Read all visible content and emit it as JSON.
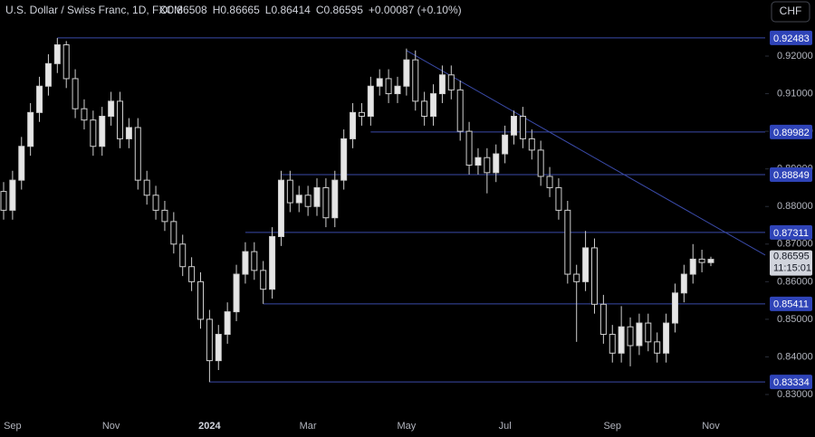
{
  "chart_data": {
    "type": "candlestick",
    "title": "U.S. Dollar / Swiss Franc, 1D, FXCM",
    "ohlc_header": [
      "O0.86508",
      "H0.86665",
      "L0.86414",
      "C0.86595",
      "+0.00087 (+0.10%)"
    ],
    "currency_button": "CHF",
    "categories": [
      null,
      "Sep",
      null,
      null,
      null,
      null,
      null,
      null,
      null,
      null,
      null,
      null,
      "Nov",
      null,
      null,
      null,
      null,
      null,
      null,
      null,
      null,
      null,
      null,
      "2024",
      null,
      null,
      null,
      null,
      null,
      null,
      null,
      null,
      null,
      null,
      "Mar",
      null,
      null,
      null,
      null,
      null,
      null,
      null,
      null,
      null,
      null,
      "May",
      null,
      null,
      null,
      null,
      null,
      null,
      null,
      null,
      null,
      null,
      "Jul",
      null,
      null,
      null,
      null,
      null,
      null,
      null,
      null,
      null,
      null,
      null,
      "Sep",
      null,
      null,
      null,
      null,
      null,
      null,
      null,
      null,
      null,
      null,
      "Nov"
    ],
    "open": [
      0.884,
      0.879,
      0.887,
      0.896,
      0.905,
      0.912,
      0.918,
      0.923,
      0.914,
      0.906,
      0.903,
      0.896,
      0.904,
      0.908,
      0.898,
      0.901,
      0.887,
      0.883,
      0.879,
      0.876,
      0.87,
      0.864,
      0.86,
      0.85,
      0.839,
      0.846,
      0.852,
      0.862,
      0.868,
      0.863,
      0.858,
      0.872,
      0.887,
      0.881,
      0.883,
      0.88,
      0.885,
      0.877,
      0.887,
      0.898,
      0.905,
      0.904,
      0.912,
      0.914,
      0.91,
      0.912,
      0.919,
      0.908,
      0.904,
      0.91,
      0.915,
      0.911,
      0.9,
      0.891,
      0.893,
      0.889,
      0.894,
      0.899,
      0.904,
      0.898,
      0.895,
      0.888,
      0.885,
      0.879,
      0.862,
      0.86,
      0.869,
      0.854,
      0.846,
      0.841,
      0.848,
      0.843,
      0.849,
      0.844,
      0.841,
      0.849,
      0.857,
      0.862,
      0.866,
      0.86508
    ],
    "high": [
      0.8865,
      0.8895,
      0.8985,
      0.9075,
      0.9145,
      0.9205,
      0.9248,
      0.924,
      0.9165,
      0.9085,
      0.9055,
      0.9065,
      0.9105,
      0.9105,
      0.9035,
      0.9035,
      0.8895,
      0.8855,
      0.8815,
      0.8785,
      0.8725,
      0.8665,
      0.8625,
      0.8525,
      0.8485,
      0.8545,
      0.8645,
      0.8705,
      0.8705,
      0.8655,
      0.8745,
      0.8895,
      0.8895,
      0.8855,
      0.8855,
      0.8875,
      0.8875,
      0.8895,
      0.9005,
      0.9075,
      0.9075,
      0.9145,
      0.9165,
      0.9165,
      0.9145,
      0.922,
      0.9215,
      0.9105,
      0.9125,
      0.9175,
      0.9175,
      0.9135,
      0.9025,
      0.8955,
      0.8955,
      0.8965,
      0.9015,
      0.9055,
      0.9065,
      0.9005,
      0.8975,
      0.8905,
      0.8875,
      0.8815,
      0.8645,
      0.8735,
      0.8715,
      0.8565,
      0.8485,
      0.8535,
      0.8505,
      0.8515,
      0.8515,
      0.8465,
      0.8515,
      0.8595,
      0.8645,
      0.87,
      0.8685,
      0.86665
    ],
    "low": [
      0.8765,
      0.8765,
      0.8845,
      0.8935,
      0.9025,
      0.9095,
      0.9155,
      0.9115,
      0.9035,
      0.9005,
      0.8935,
      0.8935,
      0.9015,
      0.8955,
      0.8955,
      0.8845,
      0.8805,
      0.8765,
      0.8735,
      0.8675,
      0.8615,
      0.8575,
      0.8475,
      0.8333,
      0.8365,
      0.8435,
      0.8495,
      0.8595,
      0.8605,
      0.8541,
      0.8555,
      0.8695,
      0.8785,
      0.8785,
      0.8775,
      0.8775,
      0.8745,
      0.8745,
      0.8845,
      0.8955,
      0.9015,
      0.9015,
      0.9095,
      0.9075,
      0.9075,
      0.9095,
      0.9055,
      0.9015,
      0.9015,
      0.9075,
      0.9085,
      0.8975,
      0.8885,
      0.8885,
      0.8835,
      0.8865,
      0.8915,
      0.8965,
      0.8955,
      0.8925,
      0.8855,
      0.8825,
      0.8765,
      0.8595,
      0.844,
      0.8575,
      0.8515,
      0.8435,
      0.8385,
      0.8385,
      0.8375,
      0.8405,
      0.8415,
      0.8385,
      0.8385,
      0.8465,
      0.8545,
      0.8595,
      0.8625,
      0.86414
    ],
    "close": [
      0.879,
      0.887,
      0.896,
      0.905,
      0.912,
      0.918,
      0.923,
      0.914,
      0.906,
      0.903,
      0.896,
      0.904,
      0.908,
      0.898,
      0.901,
      0.887,
      0.883,
      0.879,
      0.876,
      0.87,
      0.864,
      0.86,
      0.85,
      0.839,
      0.846,
      0.852,
      0.862,
      0.868,
      0.863,
      0.858,
      0.872,
      0.887,
      0.881,
      0.883,
      0.88,
      0.885,
      0.877,
      0.887,
      0.898,
      0.905,
      0.904,
      0.912,
      0.914,
      0.91,
      0.912,
      0.919,
      0.908,
      0.904,
      0.91,
      0.915,
      0.911,
      0.9,
      0.891,
      0.893,
      0.889,
      0.894,
      0.899,
      0.904,
      0.898,
      0.895,
      0.888,
      0.885,
      0.879,
      0.862,
      0.86,
      0.869,
      0.854,
      0.846,
      0.841,
      0.848,
      0.843,
      0.849,
      0.844,
      0.841,
      0.849,
      0.857,
      0.862,
      0.866,
      0.8651,
      0.86595
    ],
    "up_color": "#e6e6e6",
    "down_color": "#000000",
    "levels": [
      {
        "value": 0.92483,
        "start": 6
      },
      {
        "value": 0.89982,
        "start": 41
      },
      {
        "value": 0.88849,
        "start": 31
      },
      {
        "value": 0.87311,
        "start": 27
      },
      {
        "value": 0.85411,
        "start": 29
      },
      {
        "value": 0.83334,
        "start": 23
      }
    ],
    "level_color": "#3a4aa8",
    "trendline": [
      [
        45,
        0.9215
      ],
      [
        57,
        0.9052
      ]
    ],
    "last_price": 0.86595,
    "countdown": "11:15:01",
    "ylim": [
      0.82423,
      0.93492
    ],
    "yticks": [
      {
        "value": 0.83,
        "label": "0.83000"
      },
      {
        "value": 0.84,
        "label": "0.84000"
      },
      {
        "value": 0.85,
        "label": "0.85000"
      },
      {
        "value": 0.86,
        "label": "0.86000"
      },
      {
        "value": 0.87,
        "label": "0.87000"
      },
      {
        "value": 0.88,
        "label": "0.88000"
      },
      {
        "value": 0.89,
        "label": "0.89000"
      },
      {
        "value": 0.9,
        "label": "0.90000"
      },
      {
        "value": 0.91,
        "label": "0.91000"
      },
      {
        "value": 0.92,
        "label": "0.92000"
      }
    ]
  }
}
